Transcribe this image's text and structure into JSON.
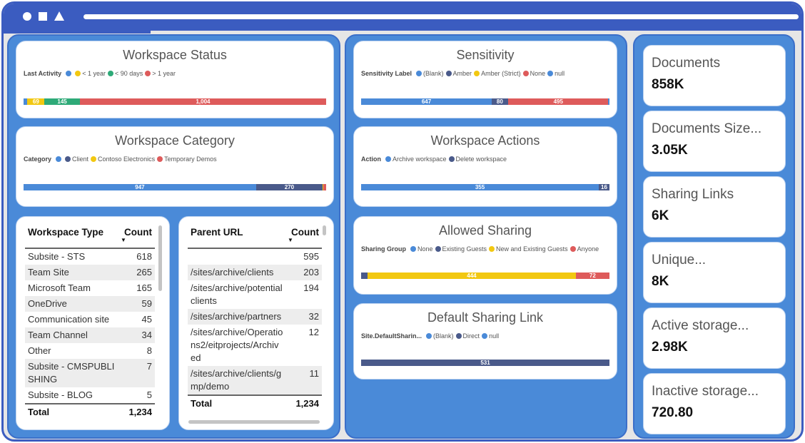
{
  "colors": {
    "blue": "#4a8ad8",
    "navy": "#4a5a8a",
    "yellow": "#f2c811",
    "green": "#2eaa78",
    "red": "#de5b5b"
  },
  "charts": [
    {
      "id": "workspace-status",
      "title": "Workspace Status",
      "legend_title": "Last Activity",
      "items": [
        {
          "label": "",
          "value": 16,
          "color": "#4a8ad8",
          "show": ""
        },
        {
          "label": "< 1 year",
          "value": 69,
          "color": "#f2c811",
          "show": "69"
        },
        {
          "label": "< 90 days",
          "value": 145,
          "color": "#2eaa78",
          "show": "145"
        },
        {
          "label": "> 1 year",
          "value": 1004,
          "color": "#de5b5b",
          "show": "1,004"
        }
      ]
    },
    {
      "id": "workspace-category",
      "title": "Workspace Category",
      "legend_title": "Category",
      "items": [
        {
          "label": "",
          "value": 947,
          "color": "#4a8ad8",
          "show": "947"
        },
        {
          "label": "Client",
          "value": 270,
          "color": "#4a5a8a",
          "show": "270"
        },
        {
          "label": "Contoso Electronics",
          "value": 2,
          "color": "#f2c811",
          "show": ""
        },
        {
          "label": "Temporary Demos",
          "value": 13,
          "color": "#de5b5b",
          "show": ""
        }
      ]
    },
    {
      "id": "sensitivity",
      "title": "Sensitivity",
      "legend_title": "Sensitivity Label",
      "items": [
        {
          "label": "(Blank)",
          "value": 647,
          "color": "#4a8ad8",
          "show": "647"
        },
        {
          "label": "Amber",
          "value": 80,
          "color": "#4a5a8a",
          "show": "80"
        },
        {
          "label": "Amber (Strict)",
          "value": 2,
          "color": "#f2c811",
          "show": ""
        },
        {
          "label": "None",
          "value": 495,
          "color": "#de5b5b",
          "show": "495"
        },
        {
          "label": "null",
          "value": 6,
          "color": "#4a8ad8",
          "show": ""
        }
      ]
    },
    {
      "id": "workspace-actions",
      "title": "Workspace Actions",
      "legend_title": "Action",
      "items": [
        {
          "label": "Archive workspace",
          "value": 355,
          "color": "#4a8ad8",
          "show": "355"
        },
        {
          "label": "Delete workspace",
          "value": 16,
          "color": "#4a5a8a",
          "show": "16"
        }
      ]
    },
    {
      "id": "allowed-sharing",
      "title": "Allowed Sharing",
      "legend_title": "Sharing Group",
      "items": [
        {
          "label": "None",
          "value": 0,
          "color": "#4a8ad8",
          "show": ""
        },
        {
          "label": "Existing Guests",
          "value": 14,
          "color": "#4a5a8a",
          "show": ""
        },
        {
          "label": "New and Existing Guests",
          "value": 444,
          "color": "#f2c811",
          "show": "444"
        },
        {
          "label": "Anyone",
          "value": 72,
          "color": "#de5b5b",
          "show": "72"
        }
      ]
    },
    {
      "id": "default-sharing-link",
      "title": "Default Sharing Link",
      "legend_title": "Site.DefaultSharin...",
      "items": [
        {
          "label": "(Blank)",
          "value": 0,
          "color": "#4a8ad8",
          "show": ""
        },
        {
          "label": "Direct",
          "value": 531,
          "color": "#4a5a8a",
          "show": "531"
        },
        {
          "label": "null",
          "value": 0,
          "color": "#4a8ad8",
          "show": ""
        }
      ]
    }
  ],
  "type_table": {
    "col1": "Workspace Type",
    "col2": "Count",
    "rows": [
      [
        "Subsite - STS",
        "618"
      ],
      [
        "Team Site",
        "265"
      ],
      [
        "Microsoft Team",
        "165"
      ],
      [
        "OneDrive",
        "59"
      ],
      [
        "Communication site",
        "45"
      ],
      [
        "Team Channel",
        "34"
      ],
      [
        "Other",
        "8"
      ],
      [
        "Subsite - CMSPUBLISHING",
        "7"
      ],
      [
        "Subsite - BLOG",
        "5"
      ]
    ],
    "total_label": "Total",
    "total": "1,234"
  },
  "url_table": {
    "col1": "Parent URL",
    "col2": "Count",
    "rows": [
      [
        "",
        "595"
      ],
      [
        "/sites/archive/clients",
        "203"
      ],
      [
        "/sites/archive/potentialclients",
        "194"
      ],
      [
        "/sites/archive/partners",
        "32"
      ],
      [
        "/sites/archive/Operations2/eitprojects/Archived",
        "12"
      ],
      [
        "/sites/archive/clients/gmp/demo",
        "11"
      ]
    ],
    "total_label": "Total",
    "total": "1,234"
  },
  "kpis": [
    {
      "label": "Documents",
      "value": "858K"
    },
    {
      "label": "Documents Size...",
      "value": "3.05K"
    },
    {
      "label": "Sharing Links",
      "value": "6K"
    },
    {
      "label": "Unique...",
      "value": "8K"
    },
    {
      "label": "Active storage...",
      "value": "2.98K"
    },
    {
      "label": "Inactive storage...",
      "value": "720.80"
    }
  ]
}
